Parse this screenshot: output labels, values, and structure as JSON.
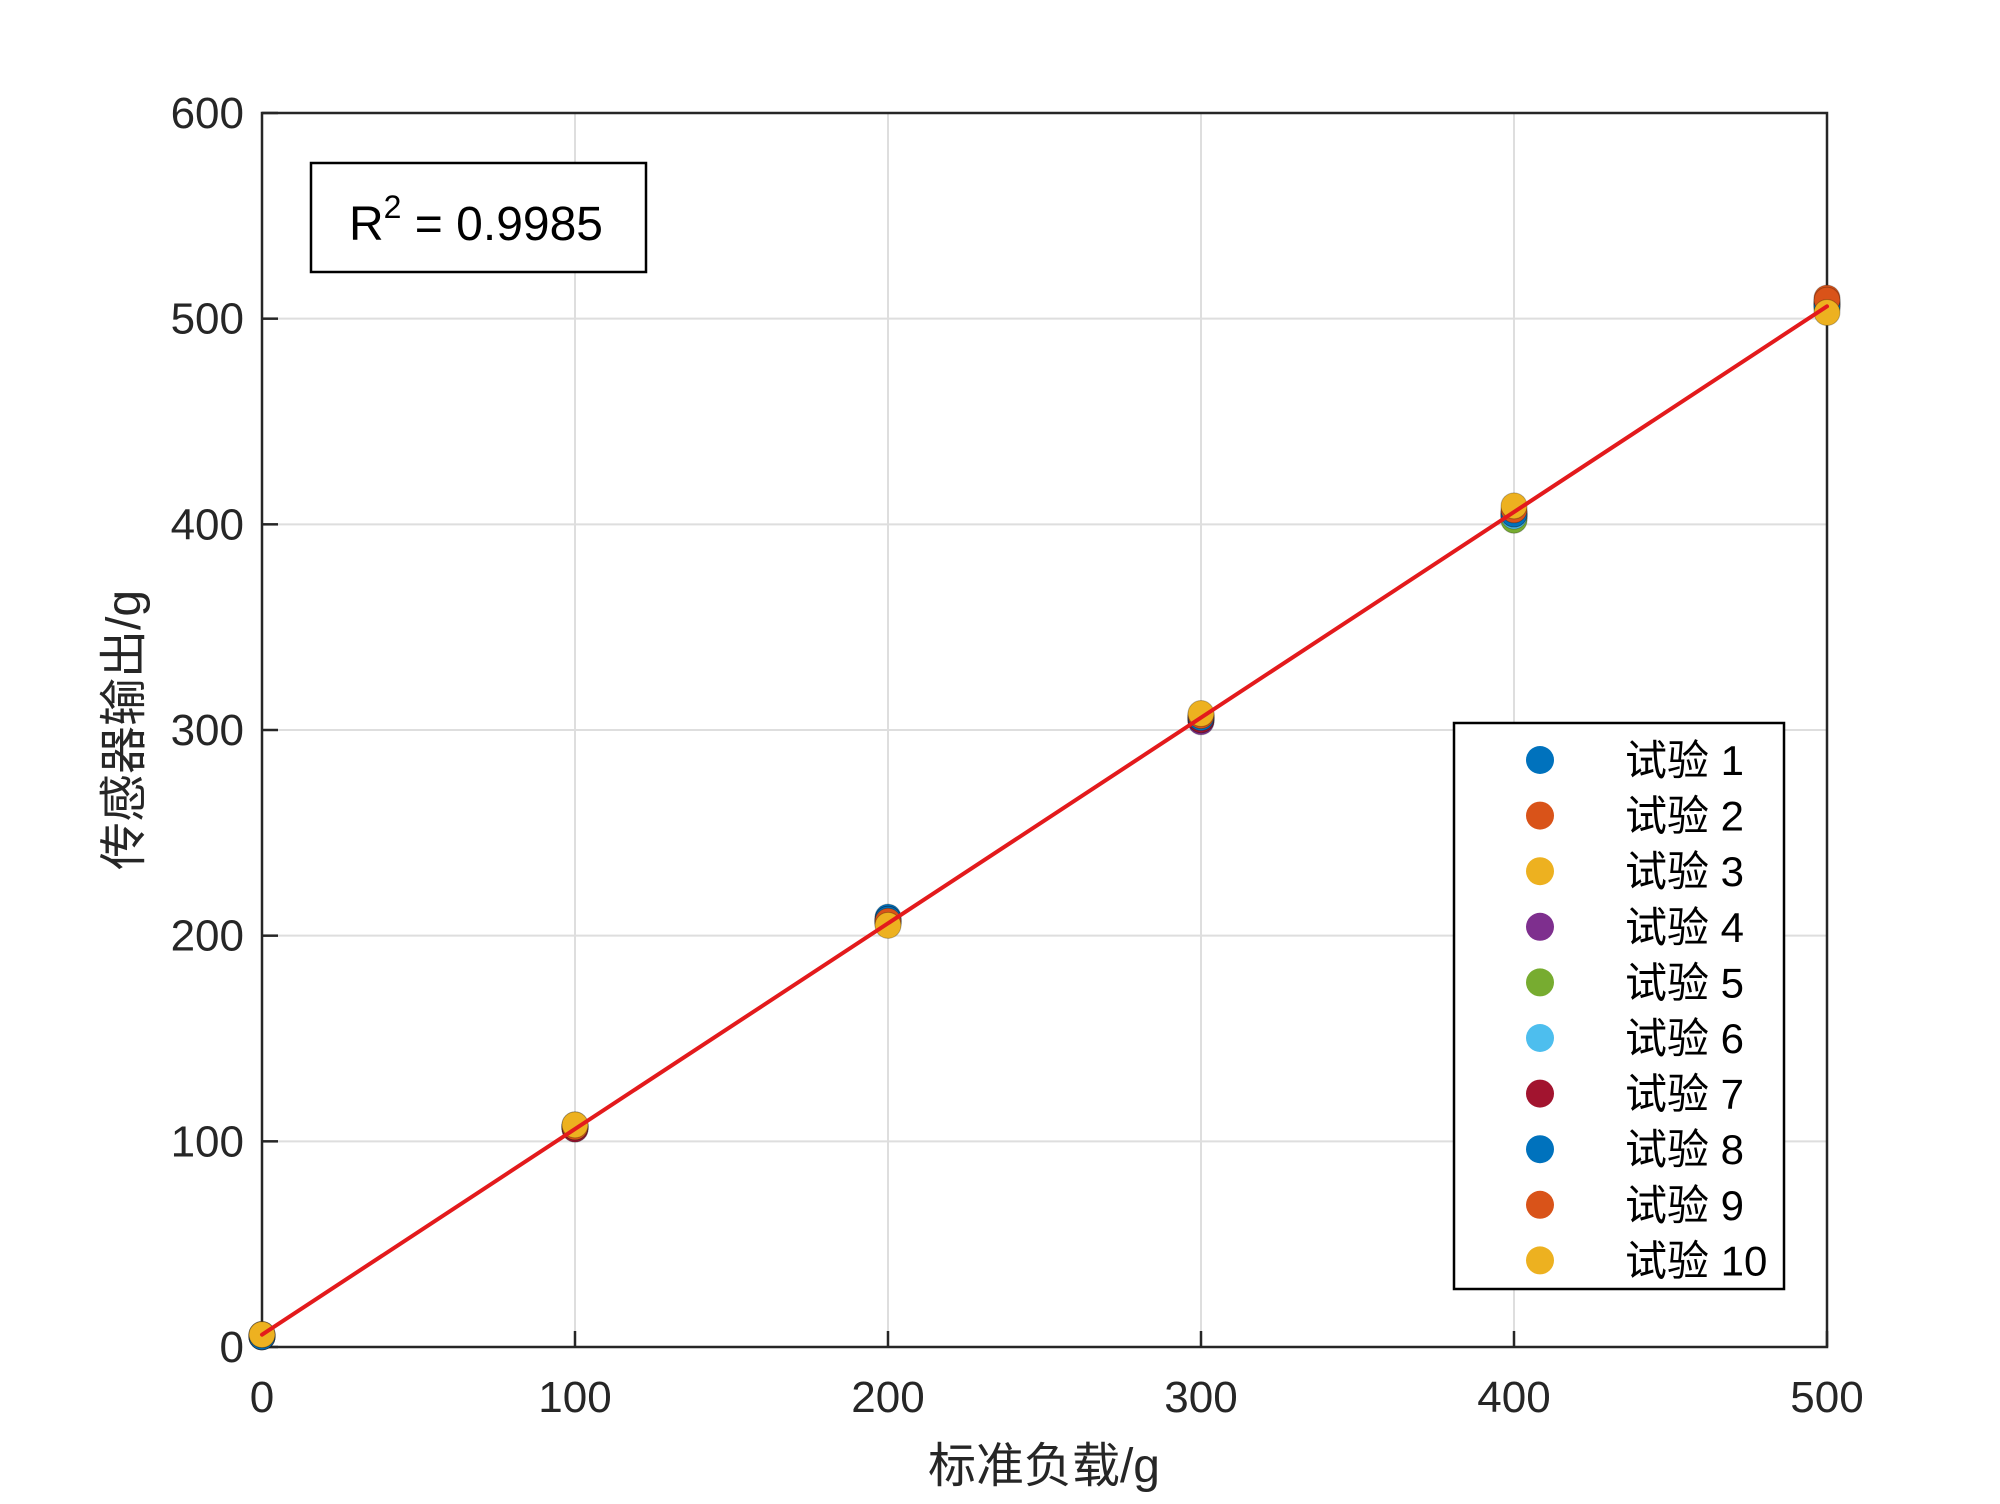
{
  "chart_data": {
    "type": "scatter",
    "xlabel": "标准负载/g",
    "ylabel": "传感器输出/g",
    "xlim": [
      0,
      500
    ],
    "ylim": [
      0,
      600
    ],
    "x_ticks": [
      "0",
      "100",
      "200",
      "300",
      "400",
      "500"
    ],
    "y_ticks": [
      "0",
      "100",
      "200",
      "300",
      "400",
      "500",
      "600"
    ],
    "grid": true,
    "legend_position": "lower-right",
    "annotation": {
      "text": "R",
      "sup": "2",
      "rest": " = 0.9985"
    },
    "x": [
      0,
      100,
      200,
      300,
      400,
      500
    ],
    "series": [
      {
        "name": "试验 1",
        "color": "#0072BD",
        "values": [
          5,
          107,
          209,
          305,
          404,
          507
        ]
      },
      {
        "name": "试验 2",
        "color": "#D95319",
        "values": [
          5,
          107,
          207,
          306,
          405,
          510
        ]
      },
      {
        "name": "试验 3",
        "color": "#EDB120",
        "values": [
          6,
          108,
          206,
          307,
          406,
          508
        ]
      },
      {
        "name": "试验 4",
        "color": "#7E2F8E",
        "values": [
          5,
          106,
          207,
          304,
          403,
          506
        ]
      },
      {
        "name": "试验 5",
        "color": "#77AC30",
        "values": [
          5,
          107,
          206,
          305,
          402,
          505
        ]
      },
      {
        "name": "试验 6",
        "color": "#4DBEEE",
        "values": [
          6,
          107,
          207,
          306,
          404,
          507
        ]
      },
      {
        "name": "试验 7",
        "color": "#A2142F",
        "values": [
          5,
          106,
          208,
          305,
          405,
          508
        ]
      },
      {
        "name": "试验 8",
        "color": "#0072BD",
        "values": [
          5,
          107,
          208,
          306,
          405,
          506
        ]
      },
      {
        "name": "试验 9",
        "color": "#D95319",
        "values": [
          6,
          107,
          207,
          307,
          407,
          509
        ]
      },
      {
        "name": "试验 10",
        "color": "#EDB120",
        "values": [
          6,
          108,
          205,
          308,
          409,
          503
        ]
      }
    ],
    "fit_line": {
      "color": "#E31A1C",
      "x": [
        0,
        500
      ],
      "y": [
        6,
        506
      ]
    }
  }
}
